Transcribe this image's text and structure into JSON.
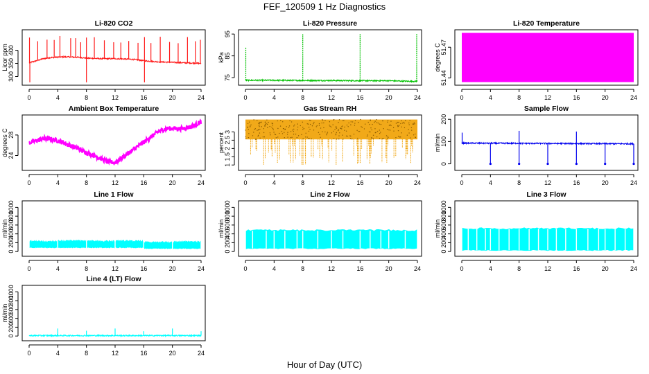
{
  "figure": {
    "title": "FEF_120509  1 Hz Diagnostics",
    "xlabel": "Hour of Day (UTC)"
  },
  "colors": {
    "red": "#ff1a1a",
    "green": "#00c000",
    "magenta": "#ff00ff",
    "orange": "#f0a000",
    "blue": "#0000ee",
    "cyan": "#00ffff",
    "axis": "#000000"
  },
  "chart_data": [
    {
      "type": "line",
      "title": "Li-820 CO2",
      "ylabel": "Licor ppm",
      "color": "red",
      "xlim": [
        0,
        24
      ],
      "xticks": [
        0,
        4,
        8,
        12,
        16,
        20,
        24
      ],
      "ylim": [
        275,
        470
      ],
      "yticks": [
        300,
        350,
        400
      ],
      "series": [
        {
          "x": [
            0,
            1,
            2,
            3,
            4,
            5,
            6,
            7,
            8,
            9,
            10,
            11,
            12,
            13,
            14,
            15,
            16,
            17,
            18,
            19,
            20,
            21,
            22,
            23,
            24
          ],
          "values": [
            352,
            360,
            368,
            372,
            374,
            375,
            374,
            373,
            370,
            369,
            368,
            368,
            368,
            367,
            366,
            364,
            360,
            358,
            356,
            355,
            354,
            353,
            352,
            351,
            350
          ]
        }
      ],
      "spikes_x": [
        0.05,
        1.2,
        2.5,
        3.5,
        4.3,
        5.8,
        6.5,
        7.2,
        8.0,
        9.1,
        10.5,
        11.8,
        12.8,
        13.9,
        15.2,
        16.1,
        17.0,
        18.3,
        19.6,
        20.8,
        22.1,
        23.2,
        23.9
      ],
      "spike_max": 455,
      "dips_x": [
        0.1,
        8.0,
        16.1
      ],
      "dip_min": 278
    },
    {
      "type": "line",
      "title": "Li-820 Pressure",
      "ylabel": "kPa",
      "color": "green",
      "xlim": [
        0,
        24
      ],
      "xticks": [
        0,
        4,
        8,
        12,
        16,
        20,
        24
      ],
      "ylim": [
        72.5,
        96
      ],
      "yticks": [
        75,
        85,
        95
      ],
      "series": [
        {
          "x": [
            0,
            4,
            8,
            12,
            16,
            20,
            22,
            23.5,
            24
          ],
          "values": [
            73.8,
            73.8,
            73.7,
            73.7,
            73.6,
            73.6,
            73.4,
            73.3,
            73.4
          ]
        }
      ],
      "spikes_x": [
        0.05,
        8.0,
        16.0,
        23.9
      ],
      "spike_values": [
        89,
        95,
        95,
        95
      ]
    },
    {
      "type": "area",
      "title": "Li-820 Temperature",
      "ylabel": "degrees C",
      "color": "magenta",
      "xlim": [
        0,
        24
      ],
      "xticks": [
        0,
        4,
        8,
        12,
        16,
        20,
        24
      ],
      "ylim": [
        51.435,
        51.485
      ],
      "yticks": [
        51.44,
        51.47
      ],
      "band": [
        51.436,
        51.484
      ]
    },
    {
      "type": "line",
      "title": "Ambient Box Temperature",
      "ylabel": "degrees C",
      "color": "magenta",
      "xlim": [
        0,
        24
      ],
      "xticks": [
        0,
        4,
        8,
        12,
        16,
        20,
        24
      ],
      "ylim": [
        21.5,
        31.5
      ],
      "yticks": [
        24,
        28
      ],
      "series": [
        {
          "x": [
            0,
            1,
            2,
            3,
            4,
            5,
            6,
            7,
            8,
            9,
            10,
            11,
            12,
            13,
            14,
            15,
            16,
            17,
            18,
            19,
            20,
            21,
            22,
            23,
            24
          ],
          "values": [
            26.5,
            26.9,
            27.3,
            27.2,
            26.9,
            26.4,
            25.8,
            25.2,
            24.6,
            24.0,
            23.4,
            22.8,
            22.6,
            23.6,
            24.6,
            25.6,
            26.6,
            27.6,
            28.6,
            29.2,
            29.3,
            29.2,
            29.4,
            29.8,
            30.6
          ]
        }
      ],
      "noise": 0.45
    },
    {
      "type": "scatter",
      "title": "Gas Stream RH",
      "ylabel": "percent",
      "color": "orange",
      "xlim": [
        0,
        24
      ],
      "xticks": [
        0,
        4,
        8,
        12,
        16,
        20,
        24
      ],
      "ylim": [
        0.8,
        3.9
      ],
      "yticks": [
        1.0,
        1.5,
        2.0,
        2.5,
        3.0
      ],
      "band": [
        2.55,
        3.75
      ],
      "dips_to": 1.0
    },
    {
      "type": "line",
      "title": "Sample Flow",
      "ylabel": "ml/min",
      "color": "blue",
      "xlim": [
        0,
        24
      ],
      "xticks": [
        0,
        4,
        8,
        12,
        16,
        20,
        24
      ],
      "ylim": [
        -20,
        210
      ],
      "yticks": [
        0,
        100,
        200
      ],
      "series": [
        {
          "x": [
            0,
            24
          ],
          "values": [
            93,
            90
          ]
        }
      ],
      "spikes_x": [
        0.05,
        8.0,
        16.0
      ],
      "spike_values": [
        140,
        148,
        145
      ],
      "dips_x": [
        4.0,
        8.0,
        12.0,
        16.0,
        20.0,
        24.0
      ],
      "dip_min": 0
    },
    {
      "type": "area",
      "title": "Line 1 Flow",
      "ylabel": "ml/min",
      "color": "cyan",
      "xlim": [
        0,
        24
      ],
      "xticks": [
        0,
        4,
        8,
        12,
        16,
        20,
        24
      ],
      "ylim": [
        -60,
        1100
      ],
      "yticks": [
        0,
        200,
        400,
        600,
        800,
        1000
      ],
      "segments": [
        {
          "x": [
            0,
            4
          ],
          "band": [
            80,
            250
          ]
        },
        {
          "x": [
            4,
            8
          ],
          "band": [
            80,
            260
          ]
        },
        {
          "x": [
            8,
            12
          ],
          "band": [
            80,
            255
          ]
        },
        {
          "x": [
            12,
            16
          ],
          "band": [
            80,
            260
          ]
        },
        {
          "x": [
            16,
            20
          ],
          "band": [
            60,
            230
          ]
        },
        {
          "x": [
            20,
            24
          ],
          "band": [
            60,
            240
          ]
        }
      ]
    },
    {
      "type": "area",
      "title": "Line 2 Flow",
      "ylabel": "ml/min",
      "color": "cyan",
      "xlim": [
        0,
        24
      ],
      "xticks": [
        0,
        4,
        8,
        12,
        16,
        20,
        24
      ],
      "ylim": [
        -60,
        1100
      ],
      "yticks": [
        0,
        200,
        400,
        600,
        800,
        1000
      ],
      "segments": [
        {
          "x": [
            0,
            24
          ],
          "band": [
            60,
            500
          ]
        }
      ],
      "gaps_x": [
        1.0,
        2.9,
        4.0,
        5.5,
        7.2,
        8.0,
        10.1,
        12.0,
        13.6,
        16.0,
        17.4,
        18.9,
        20.0,
        22.3
      ]
    },
    {
      "type": "area",
      "title": "Line 3 Flow",
      "ylabel": "ml/min",
      "color": "cyan",
      "xlim": [
        0,
        24
      ],
      "xticks": [
        0,
        4,
        8,
        12,
        16,
        20,
        24
      ],
      "ylim": [
        -60,
        1100
      ],
      "yticks": [
        0,
        200,
        400,
        600,
        800,
        1000
      ],
      "segments": [
        {
          "x": [
            0,
            24
          ],
          "band": [
            20,
            540
          ]
        }
      ],
      "gaps_x": [
        0.9,
        2.1,
        3.3,
        4.0,
        5.2,
        6.6,
        8.0,
        9.4,
        10.7,
        12.0,
        13.2,
        14.5,
        16.0,
        17.6,
        19.1,
        20.0,
        21.4,
        22.8
      ]
    },
    {
      "type": "line",
      "title": "Line 4 (LT) Flow",
      "ylabel": "ml/min",
      "color": "cyan",
      "xlim": [
        0,
        24
      ],
      "xticks": [
        0,
        4,
        8,
        12,
        16,
        20,
        24
      ],
      "ylim": [
        -60,
        1100
      ],
      "yticks": [
        0,
        200,
        400,
        600,
        800,
        1000
      ],
      "series": [
        {
          "x": [
            0,
            24
          ],
          "values": [
            10,
            10
          ]
        }
      ],
      "spikes_x": [
        4.0,
        8.0,
        12.0,
        16.0,
        20.0,
        24.0
      ],
      "spike_values": [
        170,
        120,
        170,
        110,
        170,
        110
      ]
    }
  ]
}
